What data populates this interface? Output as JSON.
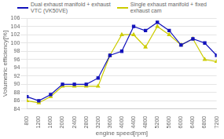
{
  "chart_data": {
    "type": "line",
    "x": [
      800,
      1200,
      1600,
      2000,
      2400,
      2800,
      3200,
      3600,
      4000,
      4400,
      4800,
      5200,
      5600,
      6000,
      6400,
      6800,
      7200
    ],
    "series": [
      {
        "name": "Dual exhaust manifold + exhaust\nVTC (VK50VE)",
        "color": "#1111bb",
        "marker": "square",
        "values": [
          87.0,
          86.0,
          87.5,
          90.0,
          90.0,
          90.0,
          91.5,
          97.0,
          98.0,
          104.0,
          103.0,
          105.0,
          103.0,
          99.5,
          101.0,
          100.0,
          97.0
        ]
      },
      {
        "name": "Single exhaust manifold + fixed\nexhaust cam",
        "color": "#cccc00",
        "marker": "triangle",
        "values": [
          86.0,
          85.5,
          87.0,
          89.5,
          89.5,
          89.5,
          89.5,
          97.0,
          102.0,
          102.0,
          99.0,
          104.0,
          102.0,
          99.5,
          101.0,
          96.0,
          95.5
        ]
      }
    ],
    "xlabel": "engine speed[rpm]",
    "ylabel": "Volumetric efficiency[%]",
    "xlim": [
      800,
      7200
    ],
    "xticks": [
      800,
      1200,
      1600,
      2000,
      2400,
      2800,
      3200,
      3600,
      4000,
      4400,
      4800,
      5200,
      5600,
      6000,
      6400,
      6800,
      7200
    ],
    "ylim": [
      84,
      106
    ],
    "yticks": [
      84,
      86,
      88,
      90,
      92,
      94,
      96,
      98,
      100,
      102,
      104,
      106
    ],
    "grid": "y"
  }
}
